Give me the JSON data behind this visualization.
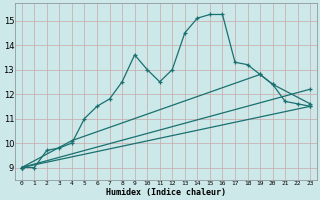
{
  "xlabel": "Humidex (Indice chaleur)",
  "bg_color": "#cce8e8",
  "line_color": "#1a7070",
  "grid_color": "#aacccc",
  "xlim": [
    -0.5,
    23.5
  ],
  "ylim": [
    8.5,
    15.7
  ],
  "xticks": [
    0,
    1,
    2,
    3,
    4,
    5,
    6,
    7,
    8,
    9,
    10,
    11,
    12,
    13,
    14,
    15,
    16,
    17,
    18,
    19,
    20,
    21,
    22,
    23
  ],
  "yticks": [
    9,
    10,
    11,
    12,
    13,
    14,
    15
  ],
  "curve1_x": [
    0,
    1,
    2,
    3,
    4,
    5,
    6,
    7,
    8,
    9,
    10,
    11,
    12,
    13,
    14,
    15,
    16,
    17,
    18,
    19,
    20,
    21,
    22,
    23
  ],
  "curve1_y": [
    9.0,
    9.0,
    9.7,
    9.8,
    10.0,
    11.0,
    11.5,
    11.8,
    12.5,
    13.6,
    13.0,
    12.5,
    13.0,
    14.5,
    15.1,
    15.25,
    15.25,
    13.3,
    13.2,
    12.8,
    12.4,
    11.7,
    11.6,
    11.5
  ],
  "line1_x": [
    0,
    4,
    19,
    20,
    23
  ],
  "line1_y": [
    9.0,
    10.1,
    12.8,
    12.4,
    11.6
  ],
  "line2_x": [
    0,
    23
  ],
  "line2_y": [
    9.0,
    12.2
  ],
  "line3_x": [
    0,
    23
  ],
  "line3_y": [
    9.0,
    11.5
  ]
}
